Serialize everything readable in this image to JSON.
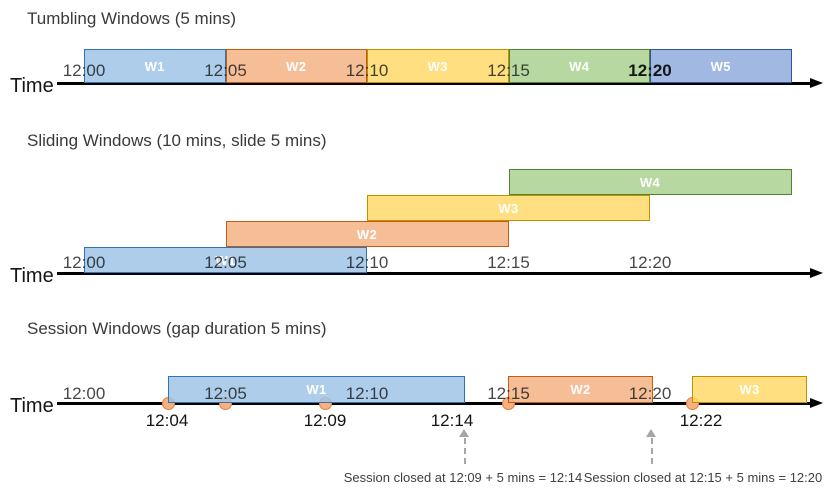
{
  "palette": {
    "blue": {
      "fill": "#9DC3E6",
      "border": "#2E75B6"
    },
    "orange": {
      "fill": "#F4B183",
      "border": "#C55A11"
    },
    "yellow": {
      "fill": "#FFD966",
      "border": "#BF9000"
    },
    "green": {
      "fill": "#A9D18E",
      "border": "#538135"
    },
    "darkblue": {
      "fill": "#8FAADC",
      "border": "#2F5597"
    },
    "dot": {
      "fill": "#F4B183",
      "border": "#ED7D31"
    },
    "timeline": "#000000",
    "annotation_arrow": "#a6a6a6"
  },
  "sections": [
    {
      "id": "tumbling",
      "title": "Tumbling Windows (5 mins)",
      "axis_label": "Time",
      "ticks": [
        "12:00",
        "12:05",
        "12:10",
        "12:15",
        "12:20"
      ],
      "windows": [
        {
          "label": "W1",
          "start": "12:00",
          "end": "12:05",
          "color": "blue"
        },
        {
          "label": "W2",
          "start": "12:05",
          "end": "12:10",
          "color": "orange"
        },
        {
          "label": "W3",
          "start": "12:10",
          "end": "12:15",
          "color": "yellow"
        },
        {
          "label": "W4",
          "start": "12:15",
          "end": "12:20",
          "color": "green"
        },
        {
          "label": "W5",
          "start": "12:20",
          "end": "12:25",
          "color": "darkblue"
        }
      ]
    },
    {
      "id": "sliding",
      "title": "Sliding Windows (10 mins, slide 5 mins)",
      "axis_label": "Time",
      "ticks": [
        "12:00",
        "12:05",
        "12:10",
        "12:15",
        "12:20"
      ],
      "windows": [
        {
          "label": "W1",
          "start": "12:00",
          "end": "12:10",
          "color": "blue"
        },
        {
          "label": "W2",
          "start": "12:05",
          "end": "12:15",
          "color": "orange"
        },
        {
          "label": "W3",
          "start": "12:10",
          "end": "12:20",
          "color": "yellow"
        },
        {
          "label": "W4",
          "start": "12:15",
          "end": "12:25",
          "color": "green"
        }
      ]
    },
    {
      "id": "session",
      "title": "Session Windows (gap duration 5 mins)",
      "axis_label": "Time",
      "ticks": [
        "12:00",
        "12:05",
        "12:10",
        "12:15",
        "12:20"
      ],
      "windows": [
        {
          "label": "W1",
          "start": "12:04",
          "end": "12:14",
          "color": "blue"
        },
        {
          "label": "W2",
          "start": "12:15",
          "end": "12:20",
          "color": "orange"
        },
        {
          "label": "W3",
          "start": "12:22",
          "end": "open",
          "color": "yellow"
        }
      ],
      "below_labels": [
        "12:04",
        "12:09",
        "12:14",
        "12:22"
      ],
      "annotations": [
        {
          "text": "Session closed at 12:09 + 5 mins = 12:14"
        },
        {
          "text": "Session closed at 12:15 + 5 mins = 12:20"
        }
      ]
    }
  ]
}
